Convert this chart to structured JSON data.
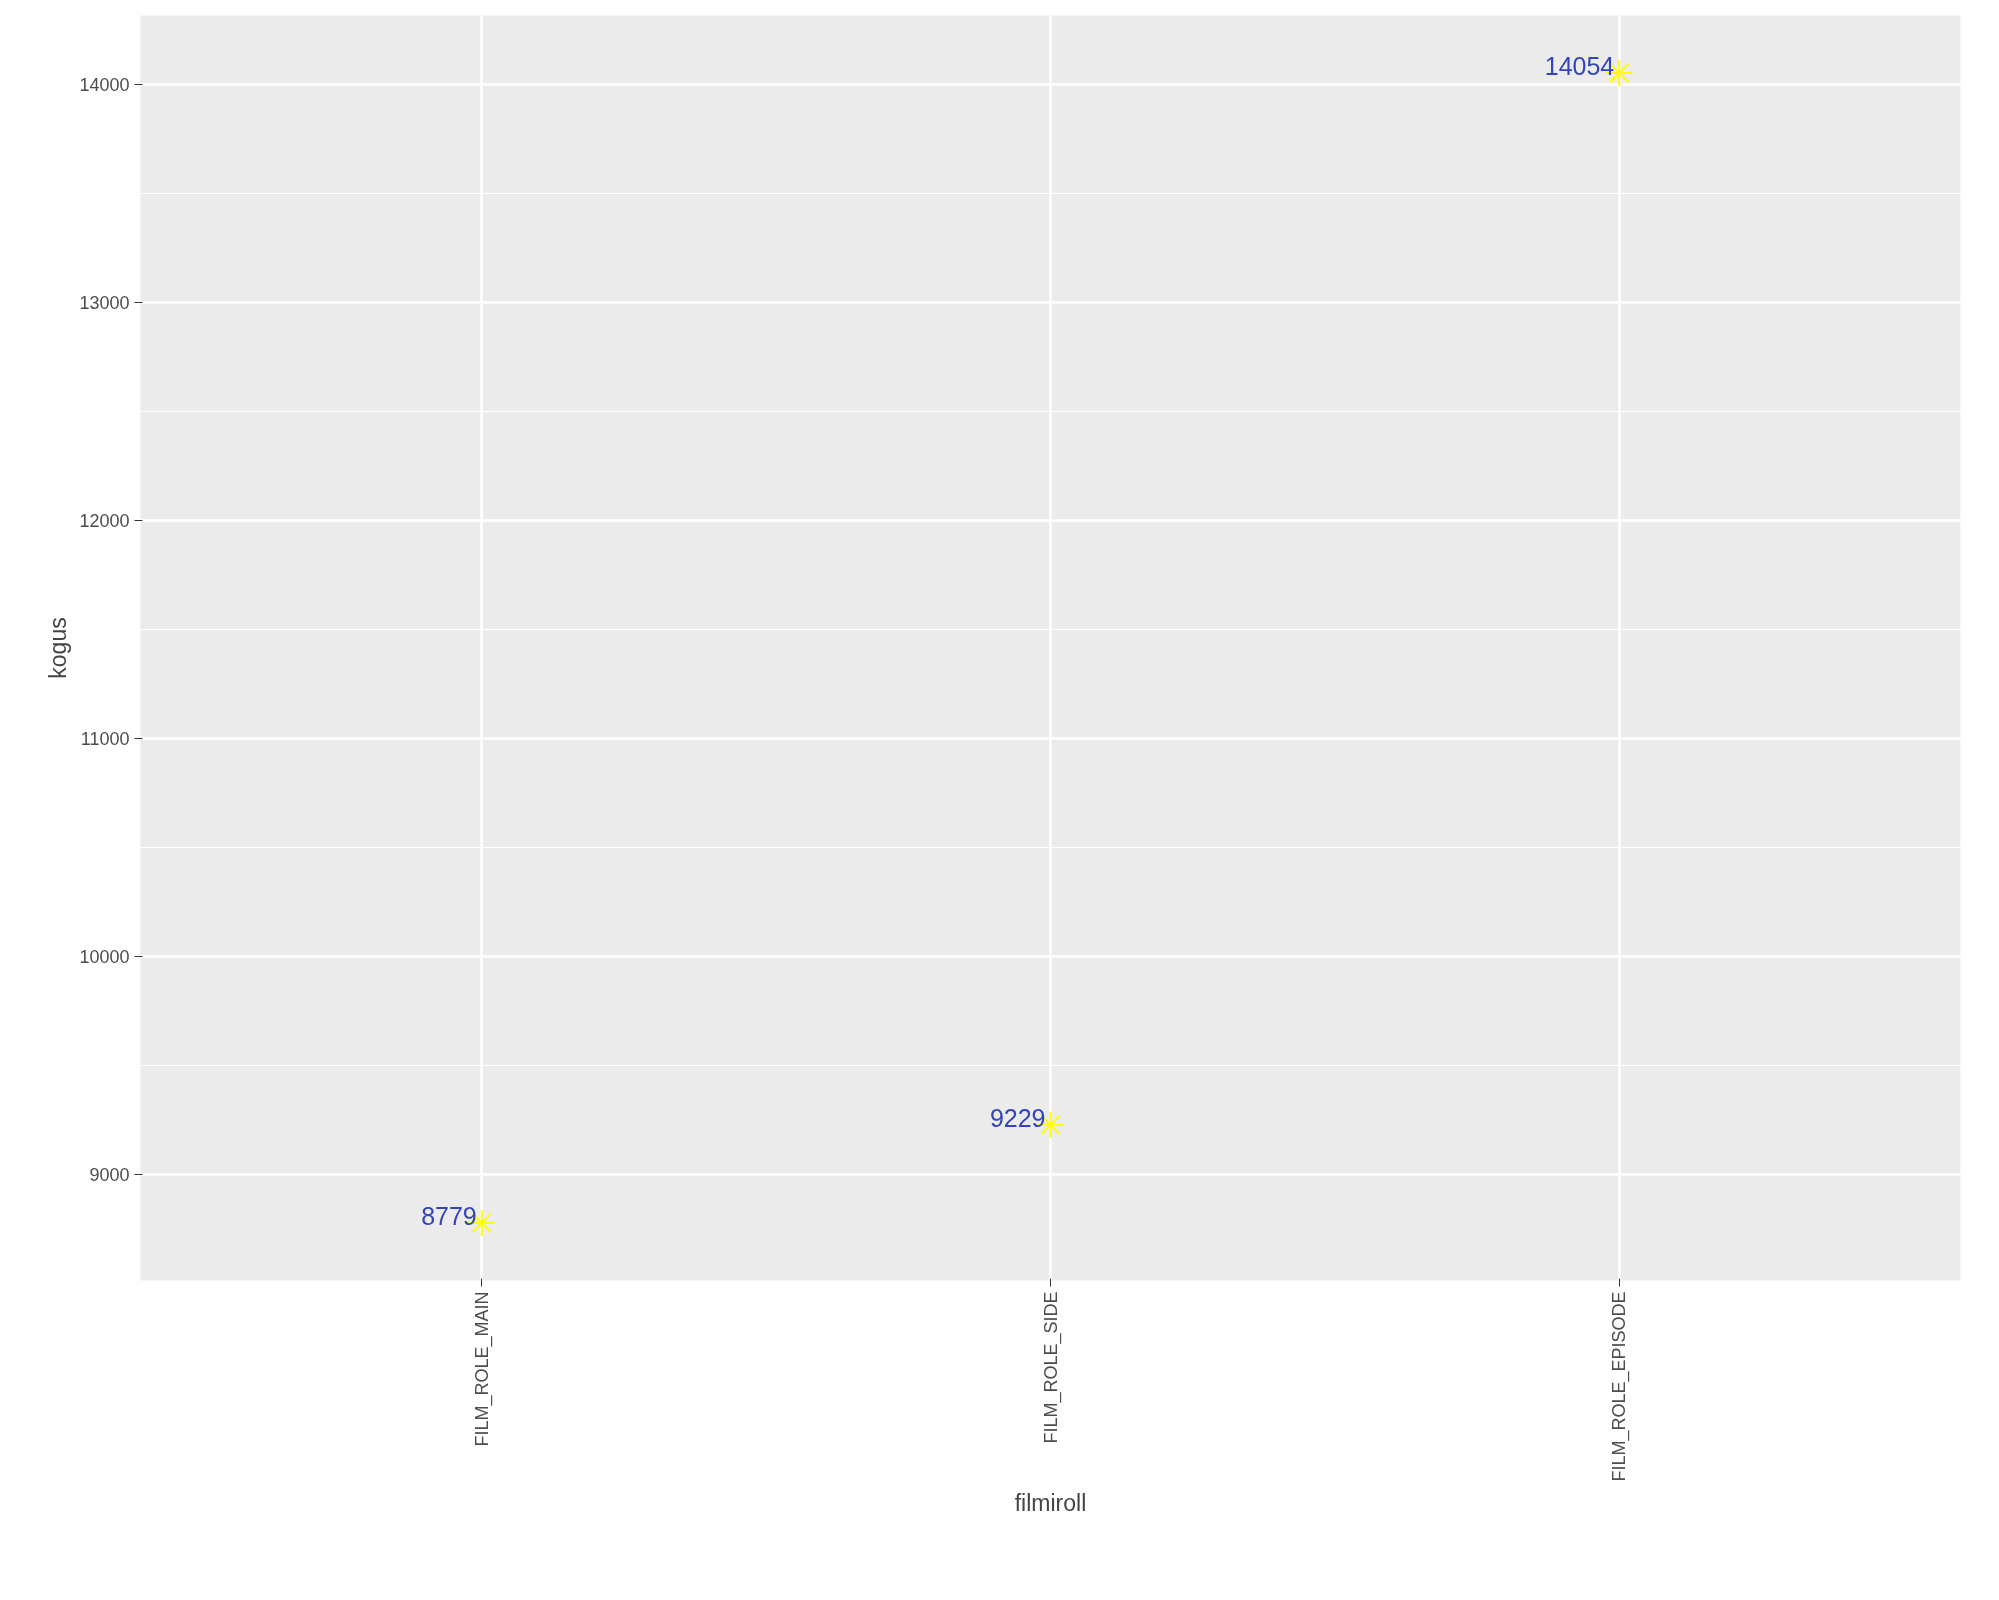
{
  "chart_data": {
    "type": "scatter",
    "xlabel": "filmiroll",
    "ylabel": "kogus",
    "categories": [
      "FILM_ROLE_MAIN",
      "FILM_ROLE_SIDE",
      "FILM_ROLE_EPISODE"
    ],
    "series": [
      {
        "color": "#ffff00",
        "values": [
          8779,
          9229,
          14054
        ]
      }
    ],
    "data_labels": true,
    "marker": "cross",
    "grid": true,
    "ylim": [
      8515,
      14318
    ],
    "yticks": [
      9000,
      10000,
      11000,
      12000,
      13000,
      14000
    ]
  }
}
